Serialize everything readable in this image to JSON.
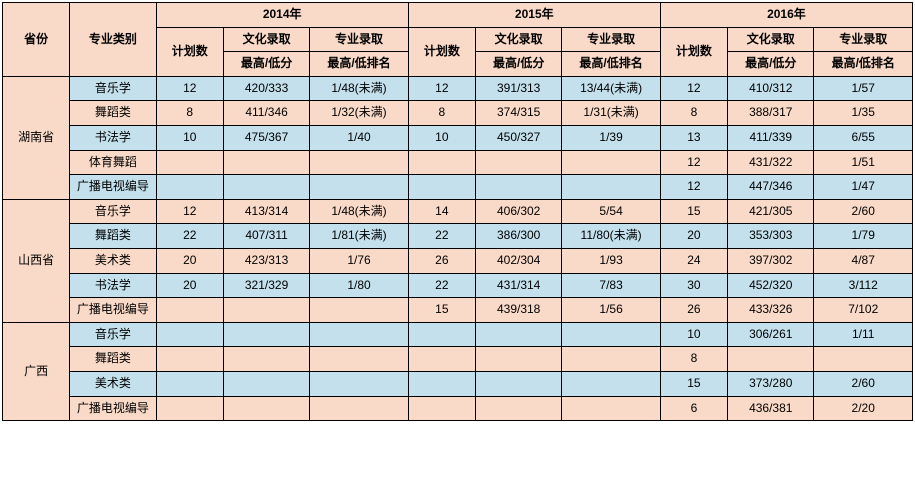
{
  "headers": {
    "province": "省份",
    "category": "专业类别",
    "years": [
      "2014年",
      "2015年",
      "2016年"
    ],
    "plan": "计划数",
    "culture": "文化录取",
    "major": "专业录取",
    "score": "最高/低分",
    "rank": "最高/低排名"
  },
  "provinces": [
    {
      "name": "湖南省",
      "rows": [
        {
          "cat": "音乐学",
          "cls": "blue",
          "y": [
            {
              "p": "12",
              "c": "420/333",
              "r": "1/48(未满)"
            },
            {
              "p": "12",
              "c": "391/313",
              "r": "13/44(未满)"
            },
            {
              "p": "12",
              "c": "410/312",
              "r": "1/57"
            }
          ]
        },
        {
          "cat": "舞蹈类",
          "cls": "peach",
          "y": [
            {
              "p": "8",
              "c": "411/346",
              "r": "1/32(未满)"
            },
            {
              "p": "8",
              "c": "374/315",
              "r": "1/31(未满)"
            },
            {
              "p": "8",
              "c": "388/317",
              "r": "1/35"
            }
          ]
        },
        {
          "cat": "书法学",
          "cls": "blue",
          "y": [
            {
              "p": "10",
              "c": "475/367",
              "r": "1/40"
            },
            {
              "p": "10",
              "c": "450/327",
              "r": "1/39"
            },
            {
              "p": "13",
              "c": "411/339",
              "r": "6/55"
            }
          ]
        },
        {
          "cat": "体育舞蹈",
          "cls": "peach",
          "y": [
            {
              "p": "",
              "c": "",
              "r": ""
            },
            {
              "p": "",
              "c": "",
              "r": ""
            },
            {
              "p": "12",
              "c": "431/322",
              "r": "1/51"
            }
          ]
        },
        {
          "cat": "广播电视编导",
          "cls": "blue",
          "y": [
            {
              "p": "",
              "c": "",
              "r": ""
            },
            {
              "p": "",
              "c": "",
              "r": ""
            },
            {
              "p": "12",
              "c": "447/346",
              "r": "1/47"
            }
          ]
        }
      ]
    },
    {
      "name": "山西省",
      "rows": [
        {
          "cat": "音乐学",
          "cls": "peach",
          "y": [
            {
              "p": "12",
              "c": "413/314",
              "r": "1/48(未满)"
            },
            {
              "p": "14",
              "c": "406/302",
              "r": "5/54"
            },
            {
              "p": "15",
              "c": "421/305",
              "r": "2/60"
            }
          ]
        },
        {
          "cat": "舞蹈类",
          "cls": "blue",
          "y": [
            {
              "p": "22",
              "c": "407/311",
              "r": "1/81(未满)"
            },
            {
              "p": "22",
              "c": "386/300",
              "r": "11/80(未满)"
            },
            {
              "p": "20",
              "c": "353/303",
              "r": "1/79"
            }
          ]
        },
        {
          "cat": "美术类",
          "cls": "peach",
          "y": [
            {
              "p": "20",
              "c": "423/313",
              "r": "1/76"
            },
            {
              "p": "26",
              "c": "402/304",
              "r": "1/93"
            },
            {
              "p": "24",
              "c": "397/302",
              "r": "4/87"
            }
          ]
        },
        {
          "cat": "书法学",
          "cls": "blue",
          "y": [
            {
              "p": "20",
              "c": "321/329",
              "r": "1/80"
            },
            {
              "p": "22",
              "c": "431/314",
              "r": "7/83"
            },
            {
              "p": "30",
              "c": "452/320",
              "r": "3/112"
            }
          ]
        },
        {
          "cat": "广播电视编导",
          "cls": "peach",
          "y": [
            {
              "p": "",
              "c": "",
              "r": ""
            },
            {
              "p": "15",
              "c": "439/318",
              "r": "1/56"
            },
            {
              "p": "26",
              "c": "433/326",
              "r": "7/102"
            }
          ]
        }
      ]
    },
    {
      "name": "广西",
      "rows": [
        {
          "cat": "音乐学",
          "cls": "blue",
          "y": [
            {
              "p": "",
              "c": "",
              "r": ""
            },
            {
              "p": "",
              "c": "",
              "r": ""
            },
            {
              "p": "10",
              "c": "306/261",
              "r": "1/11"
            }
          ]
        },
        {
          "cat": "舞蹈类",
          "cls": "peach",
          "y": [
            {
              "p": "",
              "c": "",
              "r": ""
            },
            {
              "p": "",
              "c": "",
              "r": ""
            },
            {
              "p": "8",
              "c": "",
              "r": ""
            }
          ]
        },
        {
          "cat": "美术类",
          "cls": "blue",
          "y": [
            {
              "p": "",
              "c": "",
              "r": ""
            },
            {
              "p": "",
              "c": "",
              "r": ""
            },
            {
              "p": "15",
              "c": "373/280",
              "r": "2/60"
            }
          ]
        },
        {
          "cat": "广播电视编导",
          "cls": "peach",
          "y": [
            {
              "p": "",
              "c": "",
              "r": ""
            },
            {
              "p": "",
              "c": "",
              "r": ""
            },
            {
              "p": "6",
              "c": "436/381",
              "r": "2/20"
            }
          ]
        }
      ]
    }
  ]
}
